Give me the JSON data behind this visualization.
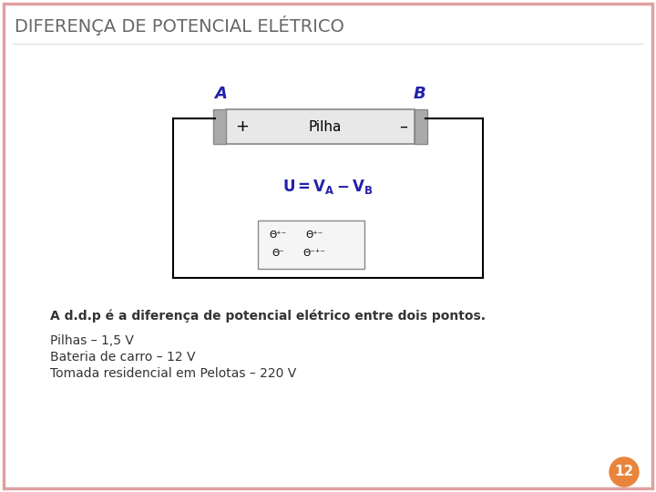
{
  "title": "DIFERENÇA DE POTENCIAL ELÉTRICO",
  "title_color": "#666666",
  "title_fontsize": 14,
  "bg_color": "#ffffff",
  "border_color": "#e0a0a0",
  "subtitle_text": "A d.d.p é a diferença de potencial elétrico entre dois pontos.",
  "bullet1": "Pilhas – 1,5 V",
  "bullet2": "Bateria de carro – 12 V",
  "bullet3": "Tomada residencial em Pelotas – 220 V",
  "label_A": "A",
  "label_B": "B",
  "pilha_text": "Pilha",
  "page_num": "12",
  "page_circle_color": "#e8843c",
  "text_color_dark": "#333333",
  "text_color_blue": "#2222aa",
  "circuit_blue": "#2222aa",
  "wire_color": "#000000",
  "bat_fill": "#e8e8e8",
  "bat_border": "#888888",
  "term_fill": "#aaaaaa",
  "inner_box_fill": "#f5f5f5",
  "inner_box_border": "#888888",
  "subtitle_fontsize": 10,
  "bullet_fontsize": 10,
  "formula_fontsize": 12,
  "label_fontsize": 13
}
